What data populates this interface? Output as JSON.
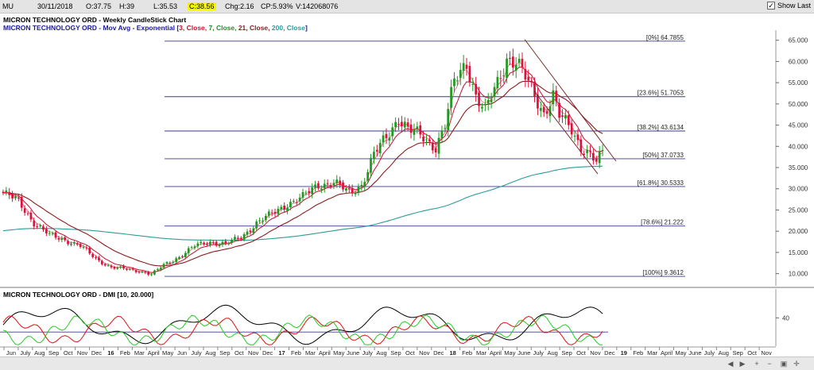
{
  "header": {
    "symbol": "MU",
    "date": "30/11/2018",
    "open": "O:37.75",
    "high": "H:39",
    "low": "L:35.53",
    "close": "C:38.56",
    "chg": "Chg:2.16",
    "cp": "CP:5.93%",
    "volume": "V:142068076",
    "show_last_label": "Show Last",
    "show_last_checked": true
  },
  "legend": {
    "line1": "MICRON TECHNOLOGY ORD - Weekly CandleStick Chart",
    "line2_prefix": "MICRON TECHNOLOGY ORD - Mov Avg - Exponential [",
    "line2_params": [
      "3, Close, ",
      "7, Close, ",
      "21, Close, ",
      "200, Close"
    ],
    "line2_suffix": "]",
    "dmi": "MICRON TECHNOLOGY ORD - DMI [10, 20.000]"
  },
  "colors": {
    "up_candle": "#1f9a1f",
    "down_candle": "#e0103c",
    "ema_red": "#c8102e",
    "ema_brown": "#8b1a1a",
    "ema_teal": "#2e9a9a",
    "fib": "#3a3a8a",
    "channel": "#7a2a2a",
    "dmi_black": "#000000",
    "dmi_red": "#dd1111",
    "dmi_green": "#22cc22"
  },
  "chart_data": {
    "type": "candlestick",
    "x_unit": "weeks",
    "ylim": [
      7.5,
      67
    ],
    "yticks": [
      10,
      15,
      20,
      25,
      30,
      35,
      40,
      45,
      50,
      55,
      60,
      65
    ],
    "ytick_labels": [
      "10.000",
      "15.000",
      "20.000",
      "25.000",
      "30.000",
      "35.000",
      "40.000",
      "45.000",
      "50.000",
      "55.000",
      "60.000",
      "65.000"
    ],
    "fib_levels": [
      {
        "label": "[0%] 64.7855",
        "value": 64.7855
      },
      {
        "label": "[23.6%] 51.7053",
        "value": 51.7053
      },
      {
        "label": "[38.2%] 43.6134",
        "value": 43.6134
      },
      {
        "label": "[50%] 37.0733",
        "value": 37.0733
      },
      {
        "label": "[61.8%] 30.5333",
        "value": 30.5333
      },
      {
        "label": "[78.6%] 21.222",
        "value": 21.222
      },
      {
        "label": "[100%] 9.3612",
        "value": 9.3612
      }
    ],
    "close_anchors": [
      [
        0,
        29
      ],
      [
        5,
        27
      ],
      [
        10,
        22
      ],
      [
        15,
        19
      ],
      [
        20,
        18
      ],
      [
        25,
        16.5
      ],
      [
        30,
        13.5
      ],
      [
        35,
        11.5
      ],
      [
        40,
        11
      ],
      [
        45,
        10.5
      ],
      [
        48,
        9.8
      ],
      [
        52,
        12
      ],
      [
        57,
        14
      ],
      [
        62,
        16.5
      ],
      [
        67,
        17.5
      ],
      [
        72,
        17
      ],
      [
        77,
        18.5
      ],
      [
        82,
        22
      ],
      [
        87,
        24
      ],
      [
        92,
        26.5
      ],
      [
        97,
        28
      ],
      [
        102,
        31
      ],
      [
        107,
        31.5
      ],
      [
        112,
        29
      ],
      [
        116,
        31
      ],
      [
        120,
        38
      ],
      [
        124,
        42
      ],
      [
        128,
        47
      ],
      [
        131,
        44
      ],
      [
        136,
        42
      ],
      [
        140,
        40
      ],
      [
        143,
        45
      ],
      [
        146,
        55
      ],
      [
        150,
        60
      ],
      [
        153,
        52
      ],
      [
        156,
        48
      ],
      [
        160,
        55
      ],
      [
        163,
        61
      ],
      [
        166,
        60
      ],
      [
        169,
        56
      ],
      [
        172,
        52
      ],
      [
        175,
        48
      ],
      [
        178,
        52
      ],
      [
        180,
        47
      ],
      [
        184,
        44
      ],
      [
        187,
        40
      ],
      [
        190,
        38
      ],
      [
        192,
        36
      ],
      [
        194,
        38.5
      ]
    ],
    "dmi_note": "DMI +DI / -DI / ADX lines"
  },
  "x_axis": {
    "labels": [
      "Jun",
      "July",
      "Aug",
      "Sep",
      "Oct",
      "Nov",
      "Dec",
      "16",
      "Feb",
      "Mar",
      "April",
      "May",
      "Jun",
      "July",
      "Aug",
      "Sep",
      "Oct",
      "Nov",
      "Dec",
      "17",
      "Feb",
      "Mar",
      "April",
      "May",
      "June",
      "July",
      "Aug",
      "Sep",
      "Oct",
      "Nov",
      "Dec",
      "18",
      "Feb",
      "Mar",
      "April",
      "May",
      "June",
      "July",
      "Aug",
      "Sep",
      "Oct",
      "Nov",
      "Dec",
      "19",
      "Feb",
      "Mar",
      "April",
      "May",
      "June",
      "July",
      "Aug",
      "Sep",
      "Oct",
      "Nov"
    ],
    "bold": [
      "16",
      "17",
      "18",
      "19"
    ]
  },
  "dmi_axis": {
    "tick_label": "40",
    "tick_value": 40
  }
}
